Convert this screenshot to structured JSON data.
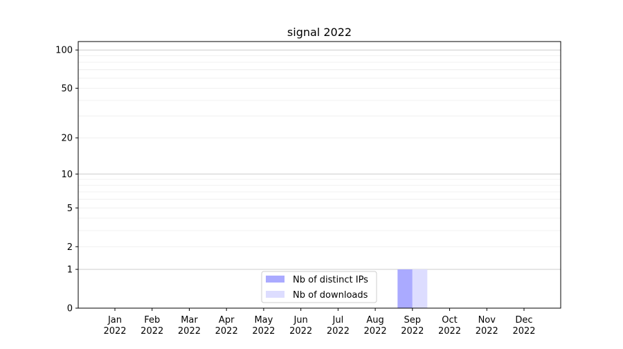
{
  "chart_data": {
    "type": "bar",
    "title": "signal 2022",
    "xlabel": "",
    "ylabel": "",
    "y_scale": "log(1+y)",
    "ylim": [
      0,
      116
    ],
    "grid": "horizontal, major at 1/10/100 and minor between",
    "categories": [
      "Jan\n2022",
      "Feb\n2022",
      "Mar\n2022",
      "Apr\n2022",
      "May\n2022",
      "Jun\n2022",
      "Jul\n2022",
      "Aug\n2022",
      "Sep\n2022",
      "Oct\n2022",
      "Nov\n2022",
      "Dec\n2022"
    ],
    "y_ticks": [
      0,
      1,
      2,
      5,
      10,
      20,
      50,
      100
    ],
    "series": [
      {
        "name": "Nb of distinct IPs",
        "color": "#aaaaff",
        "values": [
          0,
          0,
          0,
          0,
          0,
          0,
          0,
          0,
          1,
          0,
          0,
          0
        ]
      },
      {
        "name": "Nb of downloads",
        "color": "#ddddff",
        "values": [
          0,
          0,
          0,
          0,
          0,
          0,
          0,
          0,
          1,
          0,
          0,
          0
        ]
      }
    ],
    "legend_position": "lower-center"
  }
}
